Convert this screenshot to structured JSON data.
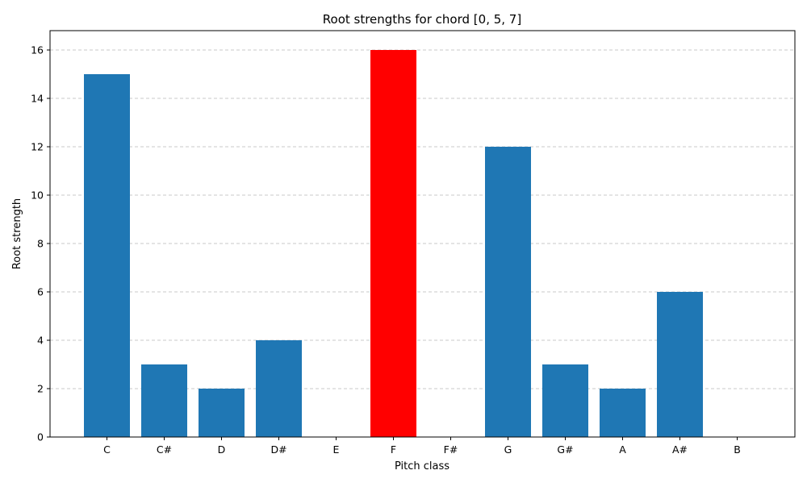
{
  "chart_data": {
    "type": "bar",
    "title": "Root strengths for chord [0, 5, 7]",
    "xlabel": "Pitch class",
    "ylabel": "Root strength",
    "categories": [
      "C",
      "C#",
      "D",
      "D#",
      "E",
      "F",
      "F#",
      "G",
      "G#",
      "A",
      "A#",
      "B"
    ],
    "values": [
      15,
      3,
      2,
      4,
      0,
      16,
      0,
      12,
      3,
      2,
      6,
      0
    ],
    "highlight_index": 5,
    "ylim": [
      0,
      16.8
    ],
    "yticks": [
      0,
      2,
      4,
      6,
      8,
      10,
      12,
      14,
      16
    ],
    "grid": "y-dashed",
    "legend": "none",
    "colors": {
      "bar": "#1f77b4",
      "highlight": "#ff0000",
      "grid": "#c8c8c8",
      "axis": "#000000"
    }
  }
}
